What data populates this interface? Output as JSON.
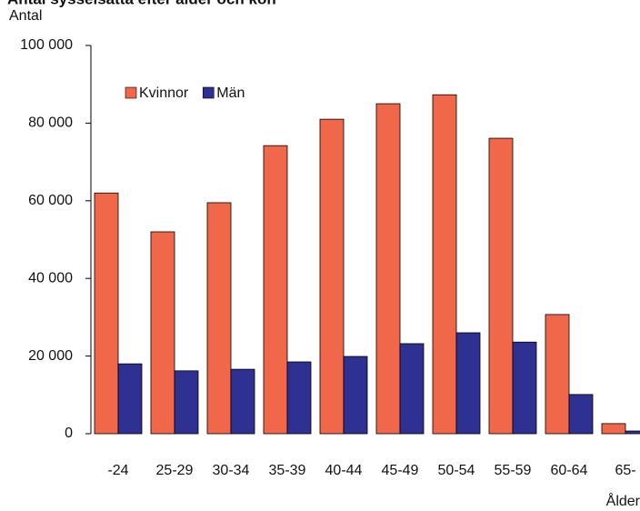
{
  "chart_data": {
    "type": "bar",
    "title": "Antal sysselsatta efter ålder och kön",
    "y_label": "Antal",
    "x_label": "Ålder",
    "categories": [
      "-24",
      "25-29",
      "30-34",
      "35-39",
      "40-44",
      "45-49",
      "50-54",
      "55-59",
      "60-64",
      "65-"
    ],
    "series": [
      {
        "name": "Kvinnor",
        "color": "#f0674a",
        "values": [
          62000,
          52000,
          59500,
          74200,
          81000,
          85000,
          87300,
          76100,
          30700,
          2600
        ]
      },
      {
        "name": "Män",
        "color": "#2e3192",
        "values": [
          18000,
          16200,
          16600,
          18500,
          19900,
          23200,
          26000,
          23600,
          10100,
          700
        ]
      }
    ],
    "ylim": [
      0,
      100000
    ],
    "yticks": [
      0,
      {
        "value": 20000,
        "label": "20 000"
      },
      {
        "value": 40000,
        "label": "40 000"
      },
      {
        "value": 60000,
        "label": "60 000"
      },
      {
        "value": 80000,
        "label": "80 000"
      },
      {
        "value": 100000,
        "label": "100 000"
      }
    ],
    "legend": "top-left"
  }
}
